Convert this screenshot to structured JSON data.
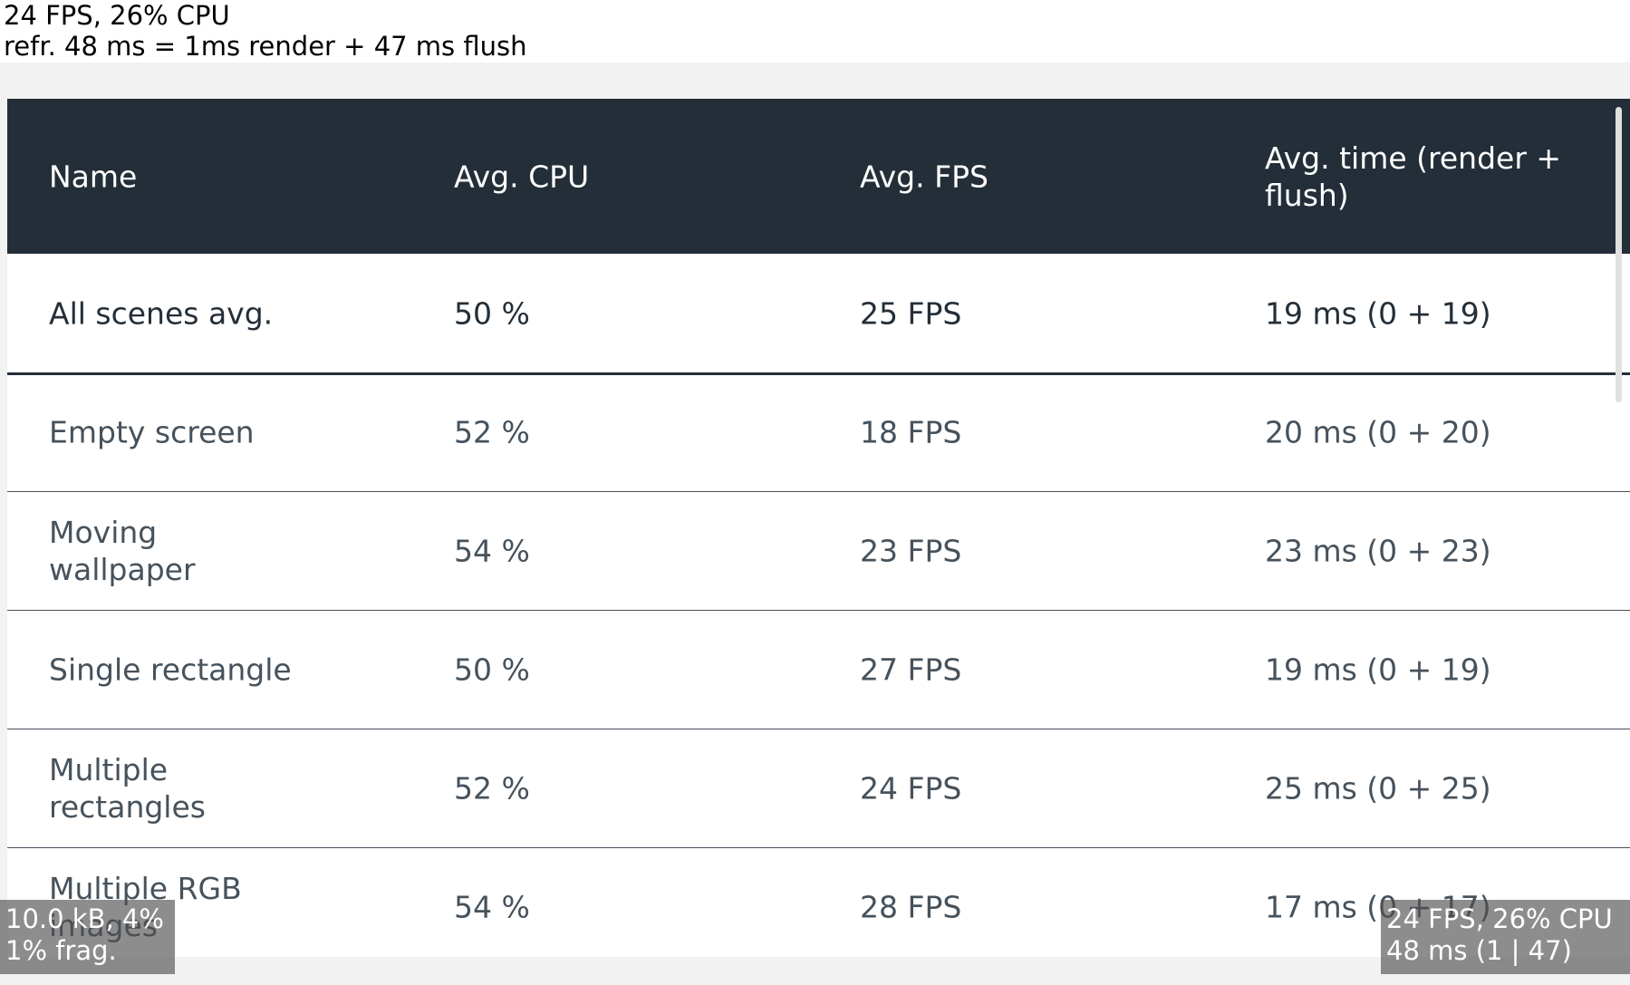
{
  "top_info": {
    "line1": "24 FPS, 26% CPU",
    "line2": "refr. 48 ms = 1ms render + 47 ms flush"
  },
  "table": {
    "headers": [
      "Name",
      "Avg. CPU",
      "Avg. FPS",
      "Avg. time (render + flush)"
    ],
    "rows": [
      [
        "All scenes avg.",
        "50 %",
        "25 FPS",
        "19 ms (0 + 19)"
      ],
      [
        "Empty screen",
        "52 %",
        "18 FPS",
        "20 ms (0 + 20)"
      ],
      [
        "Moving wallpaper",
        "54 %",
        "23 FPS",
        "23 ms (0 + 23)"
      ],
      [
        "Single rectangle",
        "50 %",
        "27 FPS",
        "19 ms (0 + 19)"
      ],
      [
        "Multiple rectangles",
        "52 %",
        "24 FPS",
        "25 ms (0 + 25)"
      ],
      [
        "Multiple RGB images",
        "54 %",
        "28 FPS",
        "17 ms (0 + 17)"
      ]
    ]
  },
  "memory_overlay": {
    "line1": "10.0 kB, 4%",
    "line2": "1% frag."
  },
  "perf_overlay": {
    "line1": "24 FPS, 26% CPU",
    "line2": "48 ms (1 | 47)"
  }
}
